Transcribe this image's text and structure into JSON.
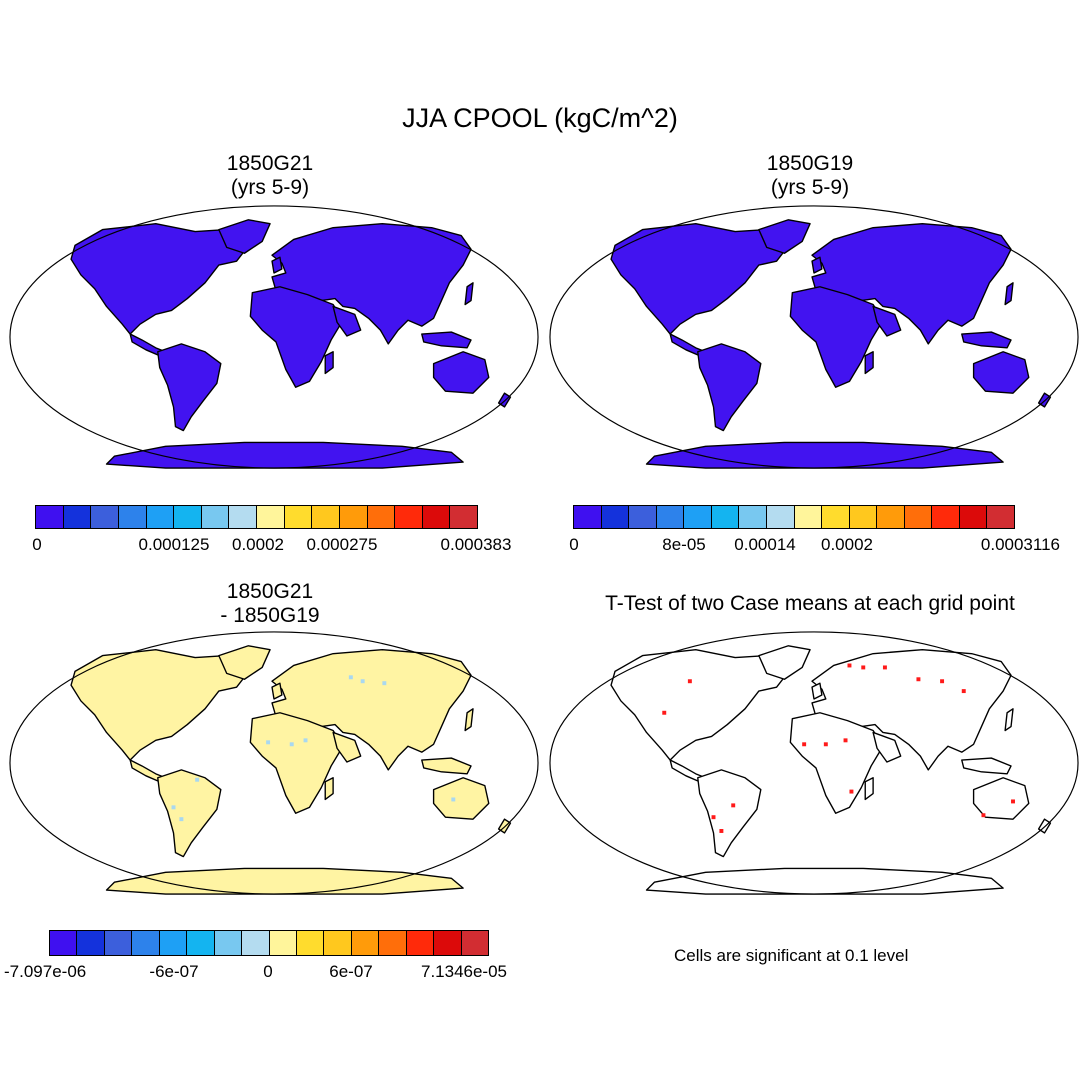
{
  "title": "JJA CPOOL (kgC/m^2)",
  "colors": {
    "land_fill": "#4213F0",
    "diff_fill": "#FFF4A3",
    "sig_dot": "#FF1A1A",
    "cool_dot": "#A9D8F0",
    "scale": [
      "#3F10F0",
      "#1432DC",
      "#3C5FDC",
      "#2D82EB",
      "#1EA0F5",
      "#14B4F0",
      "#78C8F0",
      "#B4DCF0",
      "#FFF59B",
      "#FFDC2D",
      "#FFC81E",
      "#FF9B0A",
      "#FF6E0A",
      "#FF2A0A",
      "#DC0A0A",
      "#D22D32"
    ]
  },
  "panels": {
    "top_left": {
      "title_line1": "1850G21",
      "title_line2": "(yrs 5-9)",
      "colorbar_labels": [
        "0",
        "0.000125",
        "0.0002",
        "0.000275",
        "0.000383"
      ]
    },
    "top_right": {
      "title_line1": "1850G19",
      "title_line2": "(yrs 5-9)",
      "colorbar_labels": [
        "0",
        "8e-05",
        "0.00014",
        "0.0002",
        "0.0003116"
      ]
    },
    "bottom_left": {
      "title_line1": "1850G21",
      "title_line2": "- 1850G19",
      "colorbar_labels": [
        "-7.097e-06",
        "-6e-07",
        "0",
        "6e-07",
        "7.1346e-05"
      ]
    },
    "bottom_right": {
      "title": "T-Test of two Case means at each grid point",
      "note": "Cells are significant at 0.1 level"
    }
  }
}
